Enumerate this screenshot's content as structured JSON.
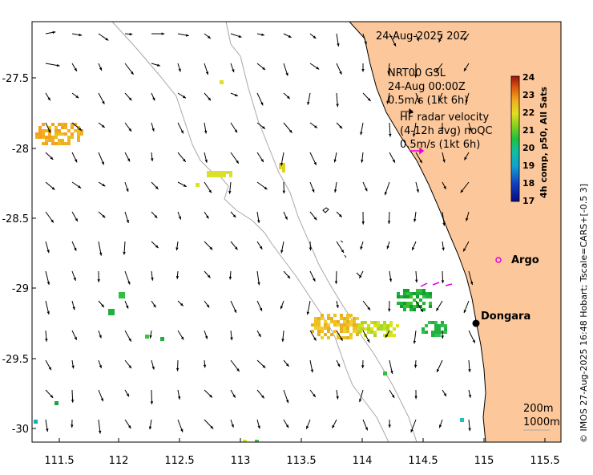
{
  "map": {
    "timestamp": "24-Aug-2025 20Z",
    "lon_ticks": [
      "111.5",
      "112",
      "112.5",
      "113",
      "113.5",
      "114",
      "114.5",
      "115",
      "115.5"
    ],
    "lat_ticks": [
      "-27.5",
      "-28",
      "-28.5",
      "-29",
      "-29.5",
      "-30"
    ],
    "model_legend": {
      "line1": "NRT00 GSL",
      "line2": "24-Aug 00:00Z",
      "line3": "0.5m/s (1kt 6h)"
    },
    "radar_legend": {
      "line1": "HF radar velocity",
      "line2": "(4-12h avg) noQC",
      "line3": "0.5m/s (1kt 6h)"
    },
    "colorbar": {
      "title": "4h comp, p50, All Sats",
      "ticks": [
        "24",
        "23",
        "22",
        "21",
        "20",
        "19",
        "18",
        "17"
      ]
    },
    "places": {
      "argo": "Argo",
      "dongara": "Dongara"
    },
    "isobaths": {
      "label1": "200m",
      "label2": "1000m"
    },
    "credit": "© IMOS 27-Aug-2025 16:48 Hobart; Tscale=CARS+[-0.5 3]",
    "colors": {
      "land": "#fcc79a",
      "argo_marker": "#e000e0",
      "radar_arrow": "#e000e0",
      "isobath": "#a8a8a8"
    }
  }
}
